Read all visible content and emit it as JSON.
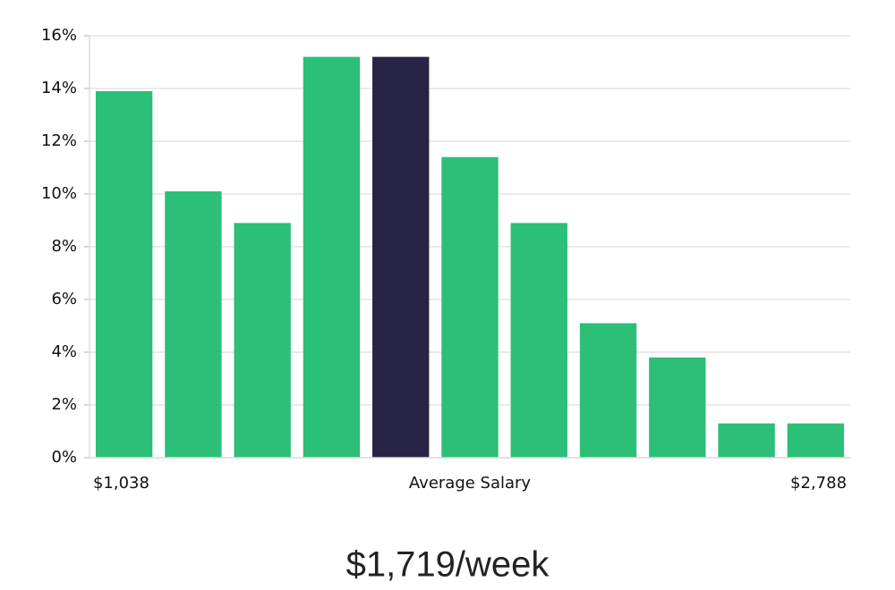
{
  "chart_data": {
    "type": "bar",
    "categories": [
      "$1,038",
      null,
      null,
      null,
      null,
      "Average Salary",
      null,
      null,
      null,
      null,
      "$2,788"
    ],
    "values": [
      13.9,
      10.1,
      8.9,
      15.2,
      15.2,
      11.4,
      8.9,
      5.1,
      3.8,
      1.3,
      1.3
    ],
    "colors": [
      "#2bbf77",
      "#2bbf77",
      "#2bbf77",
      "#2bbf77",
      "#272445",
      "#2bbf77",
      "#2bbf77",
      "#2bbf77",
      "#2bbf77",
      "#2bbf77",
      "#2bbf77"
    ],
    "ylim": [
      0,
      16
    ],
    "yticks": [
      {
        "value": 0,
        "label": "0%"
      },
      {
        "value": 2,
        "label": "2%"
      },
      {
        "value": 4,
        "label": "4%"
      },
      {
        "value": 6,
        "label": "6%"
      },
      {
        "value": 8,
        "label": "8%"
      },
      {
        "value": 10,
        "label": "10%"
      },
      {
        "value": 12,
        "label": "12%"
      },
      {
        "value": 14,
        "label": "14%"
      },
      {
        "value": 16,
        "label": "16%"
      }
    ],
    "grid": true,
    "summary": "$1,719/week"
  }
}
